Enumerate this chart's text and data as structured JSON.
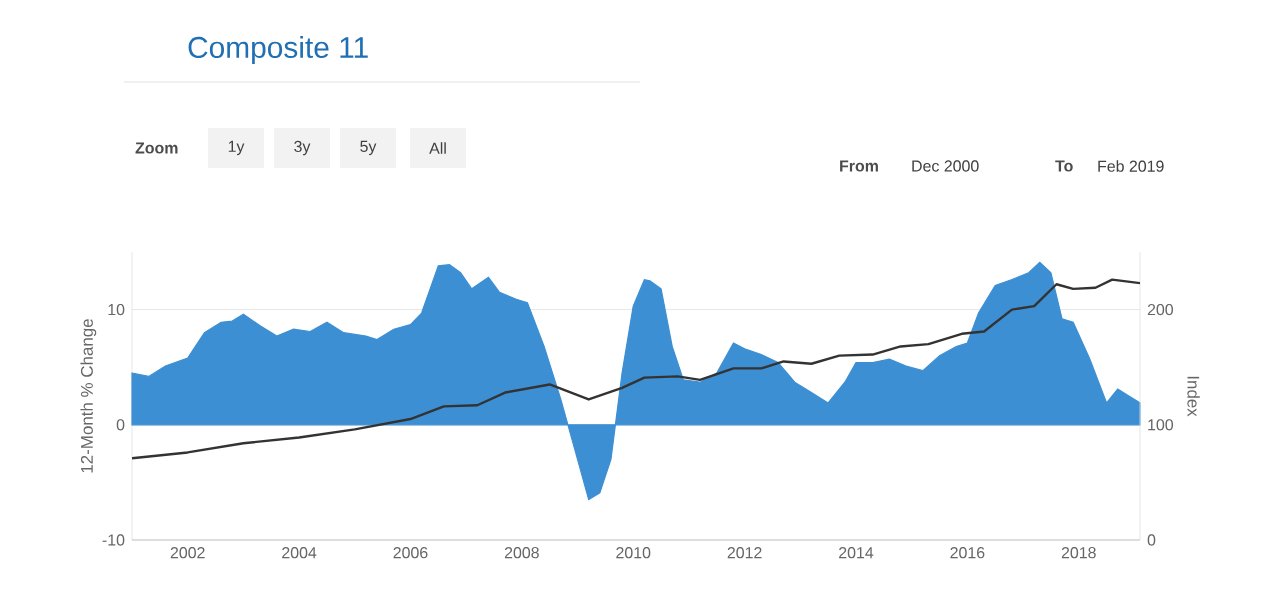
{
  "chart_data": {
    "type": "area",
    "title": "Composite 11",
    "annotations": [
      "Zoom",
      "1y",
      "3y",
      "5y",
      "All",
      "From",
      "Dec 2000",
      "To",
      "Feb 2019"
    ],
    "ylabel": "12-Month % Change",
    "y2label": "Index",
    "xlim": [
      2001.0,
      2019.1
    ],
    "xticks": [
      2002,
      2004,
      2006,
      2008,
      2010,
      2012,
      2014,
      2016,
      2018
    ],
    "ylim": [
      -10,
      15
    ],
    "yticks": [
      -10,
      0,
      10
    ],
    "y2lim": [
      0,
      250
    ],
    "y2ticks": [
      0,
      100,
      200
    ],
    "grid": "y",
    "series": [
      {
        "color": "#3d8fd3",
        "x": [
          2001.0,
          2001.3,
          2001.6,
          2002.0,
          2002.3,
          2002.6,
          2002.8,
          2003.0,
          2003.3,
          2003.6,
          2003.9,
          2004.2,
          2004.5,
          2004.8,
          2005.2,
          2005.4,
          2005.7,
          2006.0,
          2006.2,
          2006.5,
          2006.7,
          2006.9,
          2007.1,
          2007.4,
          2007.6,
          2007.9,
          2008.1,
          2008.4,
          2008.7,
          2009.0,
          2009.2,
          2009.4,
          2009.6,
          2009.8,
          2010.0,
          2010.2,
          2010.3,
          2010.5,
          2010.7,
          2010.9,
          2011.2,
          2011.5,
          2011.8,
          2012.0,
          2012.3,
          2012.6,
          2012.9,
          2013.2,
          2013.5,
          2013.8,
          2014.0,
          2014.3,
          2014.6,
          2014.9,
          2015.2,
          2015.5,
          2015.8,
          2016.0,
          2016.2,
          2016.5,
          2016.8,
          2017.1,
          2017.3,
          2017.5,
          2017.7,
          2017.9,
          2018.2,
          2018.5,
          2018.7,
          2018.9,
          2019.1
        ],
        "values": [
          4.5,
          4.2,
          5.1,
          5.8,
          8.0,
          8.9,
          9.0,
          9.6,
          8.6,
          7.7,
          8.3,
          8.1,
          8.9,
          8.0,
          7.7,
          7.4,
          8.3,
          8.7,
          9.7,
          13.8,
          13.9,
          13.2,
          11.8,
          12.8,
          11.5,
          10.9,
          10.6,
          6.8,
          2.2,
          -3.0,
          -6.5,
          -5.9,
          -3.0,
          4.5,
          10.3,
          12.6,
          12.5,
          11.8,
          6.8,
          3.9,
          3.7,
          4.5,
          7.1,
          6.6,
          6.1,
          5.4,
          3.7,
          2.8,
          1.9,
          3.7,
          5.4,
          5.4,
          5.7,
          5.1,
          4.7,
          6.0,
          6.8,
          7.1,
          9.7,
          12.1,
          12.6,
          13.2,
          14.1,
          13.2,
          9.2,
          8.9,
          5.7,
          1.9,
          3.1,
          2.5,
          1.9
        ]
      },
      {
        "type": "line",
        "axis": "y2",
        "color": "#333333",
        "x": [
          2001.0,
          2002.0,
          2003.0,
          2004.0,
          2005.0,
          2006.0,
          2006.6,
          2007.2,
          2007.7,
          2008.5,
          2009.2,
          2009.8,
          2010.2,
          2010.8,
          2011.2,
          2011.8,
          2012.3,
          2012.7,
          2013.2,
          2013.7,
          2014.3,
          2014.8,
          2015.3,
          2015.9,
          2016.3,
          2016.8,
          2017.2,
          2017.6,
          2017.9,
          2018.3,
          2018.6,
          2019.1
        ],
        "values": [
          71,
          76,
          84,
          89,
          96,
          105,
          116,
          117,
          128,
          135,
          122,
          132,
          141,
          142,
          139,
          149,
          149,
          155,
          153,
          160,
          161,
          168,
          170,
          179,
          181,
          200,
          203,
          222,
          218,
          219,
          226,
          223
        ]
      }
    ]
  }
}
